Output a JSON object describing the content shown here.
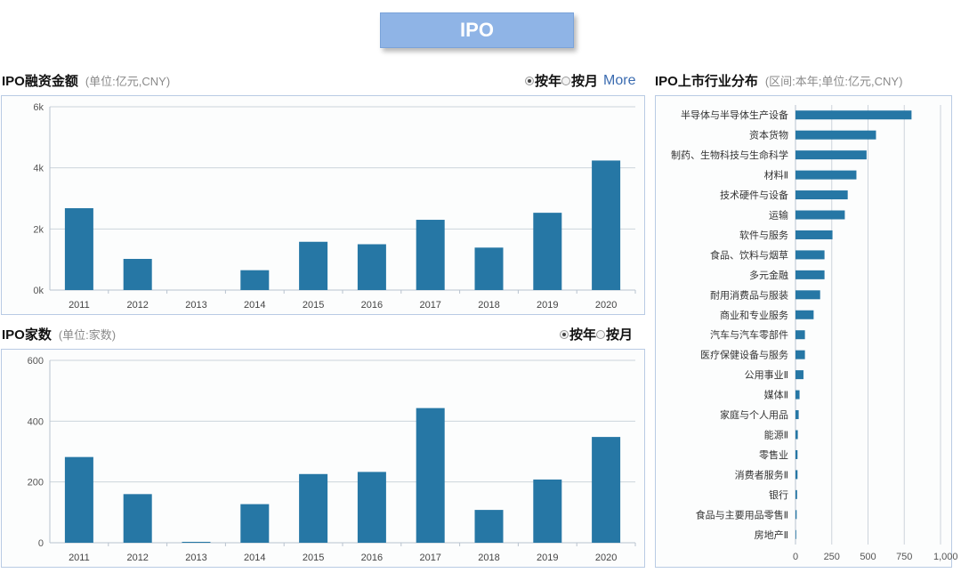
{
  "banner": {
    "title": "IPO"
  },
  "amount": {
    "title": "IPO融资金额",
    "subtitle": "(单位:亿元,CNY)",
    "toggle": {
      "year": "按年",
      "month": "按月",
      "selected": "year"
    },
    "more": "More"
  },
  "count": {
    "title": "IPO家数",
    "subtitle": "(单位:家数)",
    "toggle": {
      "year": "按年",
      "month": "按月",
      "selected": "year"
    }
  },
  "industry": {
    "title": "IPO上市行业分布",
    "subtitle": "(区间:本年;单位:亿元,CNY)"
  },
  "colors": {
    "bar": "#2677a5",
    "banner": "#8fb4e6",
    "border": "#b9cbe4"
  },
  "chart_data": [
    {
      "type": "bar",
      "title": "",
      "categories": [
        "2011",
        "2012",
        "2013",
        "2014",
        "2015",
        "2016",
        "2017",
        "2018",
        "2019",
        "2020"
      ],
      "values": [
        2680,
        1020,
        0,
        650,
        1580,
        1500,
        2300,
        1390,
        2530,
        4240
      ],
      "ylim": [
        0,
        6000
      ],
      "yticks": [
        0,
        2000,
        4000,
        6000
      ],
      "ytick_labels": [
        "0k",
        "2k",
        "4k",
        "6k"
      ],
      "grid": true
    },
    {
      "type": "bar",
      "title": "",
      "categories": [
        "2011",
        "2012",
        "2013",
        "2014",
        "2015",
        "2016",
        "2017",
        "2018",
        "2019",
        "2020"
      ],
      "values": [
        282,
        160,
        3,
        127,
        226,
        233,
        443,
        108,
        208,
        348
      ],
      "ylim": [
        0,
        600
      ],
      "yticks": [
        0,
        200,
        400,
        600
      ],
      "ytick_labels": [
        "0",
        "200",
        "400",
        "600"
      ],
      "grid": true
    },
    {
      "type": "bar",
      "orientation": "horizontal",
      "title": "",
      "categories": [
        "半导体与半导体生产设备",
        "资本货物",
        "制药、生物科技与生命科学",
        "材料Ⅱ",
        "技术硬件与设备",
        "运输",
        "软件与服务",
        "食品、饮料与烟草",
        "多元金融",
        "耐用消费品与服装",
        "商业和专业服务",
        "汽车与汽车零部件",
        "医疗保健设备与服务",
        "公用事业Ⅱ",
        "媒体Ⅱ",
        "家庭与个人用品",
        "能源Ⅱ",
        "零售业",
        "消费者服务Ⅱ",
        "银行",
        "食品与主要用品零售Ⅱ",
        "房地产Ⅱ"
      ],
      "values": [
        800,
        555,
        490,
        420,
        360,
        340,
        255,
        200,
        200,
        170,
        125,
        65,
        65,
        55,
        28,
        22,
        16,
        14,
        14,
        11,
        8,
        5
      ],
      "xlim": [
        0,
        1000
      ],
      "xticks": [
        0,
        250,
        500,
        750,
        1000
      ],
      "xtick_labels": [
        "0",
        "250",
        "500",
        "750",
        "1,000"
      ],
      "grid": true
    }
  ]
}
